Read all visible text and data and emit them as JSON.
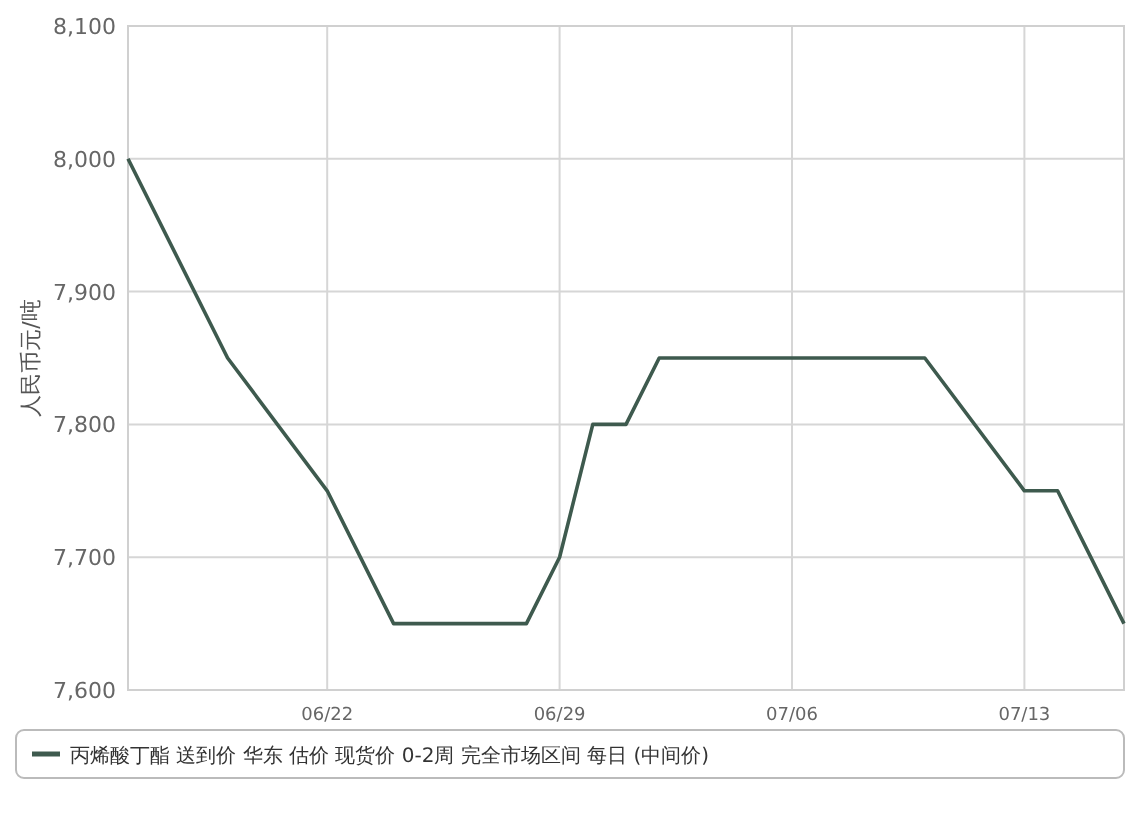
{
  "chart_data": {
    "type": "line",
    "ylabel": "人民币元/吨",
    "x": [
      "--06-16",
      "--06-19",
      "--06-22",
      "--06-24",
      "--06-28",
      "--06-29",
      "--06-30",
      "--07-01",
      "--07-02",
      "--07-10",
      "--07-13",
      "--07-14",
      "--07-16"
    ],
    "series": [
      {
        "name": "丙烯酸丁酯 送到价 华东 估价 现货价 0-2周 完全市场区间 每日 (中间价)",
        "color": "#3e5a4e",
        "values": [
          8000,
          7850,
          7750,
          7650,
          7650,
          7700,
          7800,
          7800,
          7850,
          7850,
          7750,
          7750,
          7650
        ]
      }
    ],
    "xlim": [
      "--06-16",
      "--07-16"
    ],
    "xticks": [
      {
        "value": "--06-22",
        "label": "06/22"
      },
      {
        "value": "--06-29",
        "label": "06/29"
      },
      {
        "value": "--07-06",
        "label": "07/06"
      },
      {
        "value": "--07-13",
        "label": "07/13"
      }
    ],
    "ylim": [
      7600,
      8100
    ],
    "yticks": [
      {
        "value": 7600,
        "label": "7,600"
      },
      {
        "value": 7700,
        "label": "7,700"
      },
      {
        "value": 7800,
        "label": "7,800"
      },
      {
        "value": 7900,
        "label": "7,900"
      },
      {
        "value": 8000,
        "label": "8,000"
      },
      {
        "value": 8100,
        "label": "8,100"
      }
    ],
    "grid": true,
    "legend": "bottom",
    "marker": "none",
    "line_style": "solid"
  }
}
